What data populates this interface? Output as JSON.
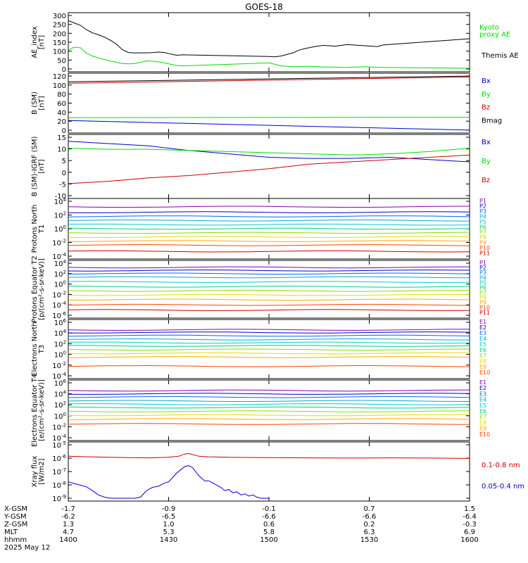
{
  "title": "GOES-18",
  "footer": {
    "rows": [
      {
        "label": "X-GSM",
        "values": [
          "-1.7",
          "-0.9",
          "-0.1",
          "0.7",
          "1.5"
        ]
      },
      {
        "label": "Y-GSM",
        "values": [
          "-6.2",
          "-6.5",
          "-6.6",
          "-6.6",
          "-6.4"
        ]
      },
      {
        "label": "Z-GSM",
        "values": [
          "1.3",
          "1.0",
          "0.6",
          "0.2",
          "-0.3"
        ]
      },
      {
        "label": "MLT",
        "values": [
          "4.7",
          "5.3",
          "5.8",
          "6.3",
          "6.9"
        ]
      },
      {
        "label": "hhmm",
        "values": [
          "1400",
          "1430",
          "1500",
          "1530",
          "1600"
        ]
      }
    ],
    "date": "2025 May 12"
  },
  "colors": {
    "black": "#000000",
    "green": "#00dd00",
    "red": "#cc0000",
    "blue": "#0000cc",
    "P": [
      "#000000",
      "#8800aa",
      "#0000cc",
      "#0066ff",
      "#00aacc",
      "#00cccc",
      "#00cc88",
      "#88dd00",
      "#dddd00",
      "#ffaa00",
      "#ff4400",
      "#cc0000"
    ]
  },
  "chart_data": [
    {
      "type": "line",
      "ylabel": "AE_index [nT]",
      "ylim": [
        0,
        300
      ],
      "yticks": [
        "300",
        "250",
        "200",
        "150",
        "100",
        "50",
        "0"
      ],
      "legend": [
        "Kyoto proxy AE",
        "Themis AE"
      ],
      "series": [
        {
          "name": "Themis AE",
          "color": "black",
          "x": [
            1400,
            1403,
            1406,
            1409,
            1412,
            1415,
            1418,
            1421,
            1424,
            1427,
            1430,
            1433,
            1436,
            1439,
            1442,
            1445,
            1448,
            1451,
            1454,
            1457,
            1500,
            1503,
            1506,
            1509,
            1512,
            1515,
            1518,
            1521,
            1524,
            1527,
            1530,
            1533,
            1536,
            1539,
            1542,
            1545,
            1548,
            1551,
            1554,
            1557,
            1600
          ],
          "values": [
            260,
            248,
            236,
            214,
            198,
            188,
            176,
            160,
            140,
            112,
            98,
            96,
            96,
            96,
            97,
            100,
            98,
            90,
            84,
            86,
            78,
            76,
            80,
            88,
            96,
            110,
            118,
            124,
            130,
            134,
            132,
            130,
            134,
            138,
            136,
            134,
            132,
            130,
            128,
            136,
            168
          ]
        },
        {
          "name": "Kyoto proxy AE",
          "color": "green",
          "x": [
            1400,
            1403,
            1406,
            1409,
            1412,
            1415,
            1418,
            1421,
            1424,
            1427,
            1430,
            1433,
            1436,
            1439,
            1442,
            1445,
            1448,
            1451,
            1454,
            1457,
            1500,
            1503,
            1506,
            1509,
            1512,
            1515,
            1518,
            1521,
            1524,
            1527,
            1530,
            1533,
            1536,
            1539,
            1542,
            1545,
            1548,
            1551,
            1554,
            1557,
            1600
          ],
          "values": [
            110,
            125,
            122,
            95,
            80,
            70,
            62,
            55,
            48,
            42,
            40,
            42,
            48,
            55,
            54,
            50,
            45,
            38,
            32,
            30,
            45,
            38,
            30,
            28,
            26,
            26,
            28,
            28,
            26,
            24,
            24,
            24,
            22,
            22,
            24,
            24,
            26,
            24,
            22,
            22,
            18
          ]
        }
      ]
    },
    {
      "type": "line",
      "ylabel": "B (SM) [nT]",
      "ylim": [
        -5,
        120
      ],
      "yticks": [
        "120",
        "100",
        "80",
        "60",
        "40",
        "20",
        "0"
      ],
      "legend": [
        "Bx",
        "By",
        "Bz",
        "Bmag"
      ],
      "series": [
        {
          "name": "Bx",
          "color": "blue",
          "x": [
            1400,
            1600
          ],
          "values": [
            21,
            1
          ]
        },
        {
          "name": "By",
          "color": "green",
          "x": [
            1400,
            1600
          ],
          "values": [
            27,
            28
          ]
        },
        {
          "name": "Bz",
          "color": "red",
          "x": [
            1400,
            1600
          ],
          "values": [
            99,
            112
          ]
        },
        {
          "name": "Bmag",
          "color": "black",
          "x": [
            1400,
            1600
          ],
          "values": [
            102,
            114
          ]
        }
      ]
    },
    {
      "type": "line",
      "ylabel": "B (SM)-IGRF (SM) [nT]",
      "ylim": [
        -12,
        16
      ],
      "yticks": [
        "15",
        "10",
        "5",
        "0",
        "-5",
        "-10"
      ],
      "legend": [
        "Bx",
        "By",
        "Bz"
      ],
      "series": [
        {
          "name": "Bx",
          "color": "blue",
          "x": [
            1400,
            1420,
            1440,
            1460,
            1480,
            1500,
            1520,
            1540,
            1560,
            1580,
            1600
          ],
          "values": [
            13,
            12,
            11,
            9,
            7.5,
            6,
            5.5,
            5.5,
            6,
            5,
            4
          ]
        },
        {
          "name": "By",
          "color": "green",
          "x": [
            1400,
            1420,
            1440,
            1460,
            1480,
            1500,
            1520,
            1540,
            1560,
            1580,
            1600
          ],
          "values": [
            10,
            9.5,
            9.5,
            9,
            8.5,
            8,
            7.5,
            7,
            7.5,
            8.5,
            10
          ]
        },
        {
          "name": "Bz",
          "color": "red",
          "x": [
            1400,
            1420,
            1440,
            1460,
            1480,
            1500,
            1520,
            1540,
            1560,
            1580,
            1600
          ],
          "values": [
            -5.5,
            -4.5,
            -3,
            -2,
            -0.5,
            1,
            3,
            4,
            5,
            6,
            7
          ]
        }
      ]
    },
    {
      "type": "line",
      "ylabel": "Protons North T1",
      "scale": "log",
      "yticks": [
        "10^4",
        "10^2",
        "10^0",
        "10^-2",
        "10^-4"
      ],
      "legend": [
        "P1",
        "P2",
        "P3",
        "P4",
        "P5",
        "P6",
        "P7",
        "P8",
        "P9",
        "P10",
        "P11"
      ],
      "levels_log10": [
        3.2,
        2.4,
        1.8,
        1.2,
        0.6,
        0,
        -0.6,
        -1.2,
        -1.8,
        -2.4,
        -3.3
      ]
    },
    {
      "type": "line",
      "ylabel": "Protons Equator T2 [p/(cm²-s-sr-keV)]",
      "scale": "log",
      "yticks": [
        "10^4",
        "10^2",
        "10^0",
        "10^-2",
        "10^-4",
        "10^-6"
      ],
      "legend": [
        "P1",
        "P2",
        "P3",
        "P4",
        "P5",
        "P6",
        "P7",
        "P8",
        "P9",
        "P10",
        "P11"
      ],
      "levels_log10": [
        3.2,
        2.6,
        2.0,
        1.3,
        0.4,
        -0.5,
        -1.3,
        -2.1,
        -3.0,
        -4.0,
        -5.0
      ]
    },
    {
      "type": "line",
      "ylabel": "Electrons North T3",
      "scale": "log",
      "yticks": [
        "10^6",
        "10^4",
        "10^2",
        "10^0",
        "10^-2",
        "10^-4"
      ],
      "legend": [
        "E1",
        "E2",
        "E3",
        "E4",
        "E5",
        "E6",
        "E7",
        "E8",
        "E9",
        "E10"
      ],
      "levels_log10": [
        4.6,
        4.1,
        3.5,
        2.8,
        2.2,
        1.6,
        0.9,
        0.2,
        -0.5,
        -2.2
      ]
    },
    {
      "type": "line",
      "ylabel": "Electrons Equator T4 [e/(cm²-s-sr-keV)]",
      "scale": "log",
      "yticks": [
        "10^6",
        "10^4",
        "10^2",
        "10^0",
        "10^-2",
        "10^-4"
      ],
      "legend": [
        "E1",
        "E2",
        "E3",
        "E4",
        "E5",
        "E6",
        "E7",
        "E8",
        "E9",
        "E10"
      ],
      "levels_log10": [
        4.6,
        4.0,
        3.4,
        2.7,
        2.1,
        1.5,
        0.8,
        0.1,
        -0.6,
        -1.5
      ]
    },
    {
      "type": "line",
      "ylabel": "Xray flux [W/m2]",
      "scale": "log",
      "yticks": [
        "10^-5",
        "10^-6",
        "10^-7",
        "10^-8",
        "10^-9"
      ],
      "legend": [
        "0.1-0.8 nm",
        "0.05-0.4 nm"
      ],
      "series": [
        {
          "name": "0.1-0.8 nm",
          "color": "red",
          "x": [
            1400,
            1410,
            1420,
            1430,
            1440,
            1450,
            1455,
            1458,
            1460,
            1462,
            1465,
            1470,
            1480,
            1490,
            1500,
            1520,
            1540,
            1560,
            1580,
            1600
          ],
          "values": [
            -6.05,
            -6.1,
            -6.15,
            -6.18,
            -6.2,
            -6.15,
            -6.05,
            -5.85,
            -5.8,
            -5.9,
            -6.05,
            -6.1,
            -6.15,
            -6.17,
            -6.18,
            -6.2,
            -6.22,
            -6.2,
            -6.22,
            -6.25
          ]
        },
        {
          "name": "0.05-0.4 nm",
          "color": "blue",
          "x": [
            1400,
            1403,
            1406,
            1409,
            1412,
            1415,
            1418,
            1421,
            1424,
            1427,
            1430,
            1433,
            1436,
            1439,
            1442,
            1445,
            1448,
            1450,
            1452,
            1454,
            1456,
            1458,
            1460,
            1462,
            1464,
            1466,
            1468,
            1470,
            1472,
            1474,
            1476,
            1478,
            1480,
            1482,
            1484,
            1486,
            1488,
            1490,
            1492,
            1494,
            1496,
            1498,
            1500
          ],
          "values": [
            -8.4,
            -8.55,
            -8.7,
            -8.85,
            -9.2,
            -9.6,
            -9.8,
            -9.9,
            -9.9,
            -9.9,
            -9.9,
            -9.9,
            -9.8,
            -9.2,
            -8.9,
            -8.8,
            -8.5,
            -8.4,
            -8.0,
            -7.6,
            -7.3,
            -7.0,
            -6.9,
            -7.1,
            -7.6,
            -8.0,
            -8.3,
            -8.3,
            -8.5,
            -8.7,
            -8.9,
            -9.2,
            -9.1,
            -9.4,
            -9.3,
            -9.6,
            -9.5,
            -9.7,
            -9.6,
            -9.8,
            -9.9,
            -9.9,
            -9.9
          ]
        }
      ]
    }
  ]
}
